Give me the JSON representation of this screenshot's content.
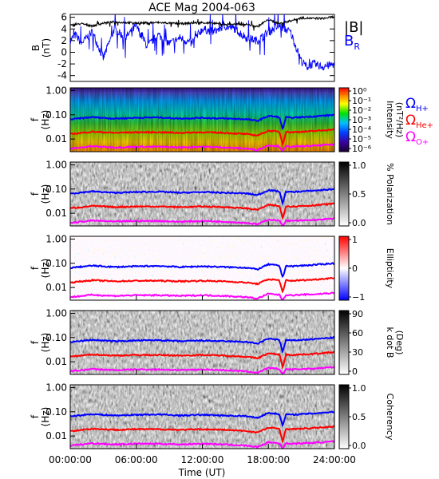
{
  "title": "ACE Mag 2004-063",
  "xlabel": "Time (UT)",
  "time_ticks": [
    "00:00:00",
    "06:00:00",
    "12:00:00",
    "18:00:00",
    "24:00:00"
  ],
  "freq_ticks": [
    "1.00",
    "0.10",
    "0.01"
  ],
  "ylabel_f": "f",
  "ylabel_hz": "(Hz)",
  "ylabel_b": "B",
  "ylabel_nt": "(nT)",
  "colors": {
    "B_total": "#000000",
    "B_R": "#0000ff",
    "H_plus": "#0000ff",
    "He_plus": "#ff0000",
    "O_plus": "#ff00ff"
  },
  "legend": {
    "B_total": "|B|",
    "B_R_main": "B",
    "B_R_sub": "R",
    "omega": "Ω",
    "H_sub": "H+",
    "He_sub": "He+",
    "O_sub": "O+"
  },
  "panels": [
    {
      "id": "intensity",
      "label_lines": [
        "Intensity",
        "(nT²/Hz)"
      ],
      "ticks": [
        "10⁰",
        "10⁻¹",
        "10⁻²",
        "10⁻³",
        "10⁻⁴",
        "10⁻⁵",
        "10⁻⁶"
      ],
      "colormap": "rainbow"
    },
    {
      "id": "polarization",
      "label_lines": [
        "% Polarization"
      ],
      "ticks": [
        "1.0",
        "0.5",
        "0.0"
      ],
      "colormap": "gray"
    },
    {
      "id": "ellipticity",
      "label_lines": [
        "Ellipticity"
      ],
      "ticks": [
        "1",
        "0",
        "−1"
      ],
      "colormap": "bwr"
    },
    {
      "id": "kdotb",
      "label_lines": [
        "k dot B",
        "(Deg)"
      ],
      "ticks": [
        "90",
        "60",
        "30",
        "0"
      ],
      "colormap": "gray"
    },
    {
      "id": "coherency",
      "label_lines": [
        "Coherency"
      ],
      "ticks": [
        "1.0",
        "0.5",
        "0.0"
      ],
      "colormap": "gray"
    }
  ],
  "chart_data": {
    "type": "line",
    "x_unit": "hours UT",
    "xlim": [
      0,
      24
    ],
    "top_panel": {
      "ylim": [
        -5,
        6.5
      ],
      "yticks": [
        -4,
        -2,
        0,
        2,
        4,
        6
      ],
      "series": [
        {
          "name": "|B|",
          "x": [
            0,
            1,
            2,
            3,
            4,
            6,
            8,
            10,
            12,
            14,
            16,
            17,
            18,
            19,
            20,
            21,
            22,
            23,
            24
          ],
          "y": [
            4.6,
            4.9,
            4.5,
            5.0,
            5.2,
            5.0,
            5.1,
            4.9,
            5.1,
            4.8,
            4.8,
            4.4,
            5.6,
            4.9,
            5.4,
            5.9,
            5.8,
            5.8,
            6.1
          ]
        },
        {
          "name": "B_R",
          "x": [
            0,
            0.5,
            1,
            2,
            3,
            4,
            5,
            6,
            7,
            8,
            9,
            10,
            11,
            12,
            13,
            14,
            15,
            16,
            17,
            18,
            19,
            20,
            20.5,
            21,
            21.5,
            22,
            23,
            24
          ],
          "y": [
            2.0,
            3.0,
            1.5,
            3.5,
            -1.0,
            4.0,
            2.5,
            4.5,
            1.0,
            3.0,
            1.5,
            2.5,
            1.5,
            4.0,
            3.5,
            4.5,
            4.0,
            2.5,
            2.0,
            3.5,
            4.5,
            3.5,
            1.0,
            -1.5,
            -2.5,
            -2.0,
            -2.5,
            -2.0
          ]
        }
      ]
    },
    "frequency_axis": {
      "scale": "log",
      "ylim": [
        0.003,
        1.3
      ]
    },
    "ion_cyclotron_lines": [
      {
        "name": "H+",
        "x": [
          0,
          2,
          4,
          6,
          8,
          10,
          12,
          14,
          16,
          17,
          18,
          19,
          19.3,
          19.6,
          20,
          22,
          24
        ],
        "y": [
          0.065,
          0.08,
          0.07,
          0.075,
          0.078,
          0.07,
          0.075,
          0.07,
          0.066,
          0.056,
          0.09,
          0.08,
          0.025,
          0.08,
          0.075,
          0.085,
          0.1
        ]
      },
      {
        "name": "He+",
        "x": [
          0,
          2,
          4,
          6,
          8,
          10,
          12,
          14,
          16,
          17,
          18,
          19,
          19.3,
          19.6,
          20,
          22,
          24
        ],
        "y": [
          0.016,
          0.02,
          0.018,
          0.019,
          0.019,
          0.018,
          0.019,
          0.018,
          0.016,
          0.014,
          0.022,
          0.02,
          0.006,
          0.02,
          0.019,
          0.021,
          0.025
        ]
      },
      {
        "name": "O+",
        "x": [
          0,
          2,
          4,
          6,
          8,
          10,
          12,
          14,
          16,
          17,
          18,
          19,
          19.3,
          19.6,
          20,
          22,
          24
        ],
        "y": [
          0.004,
          0.005,
          0.0045,
          0.0048,
          0.0048,
          0.0045,
          0.0048,
          0.0045,
          0.004,
          0.0035,
          0.0055,
          0.005,
          0.003,
          0.005,
          0.0048,
          0.0052,
          0.006
        ]
      }
    ]
  }
}
